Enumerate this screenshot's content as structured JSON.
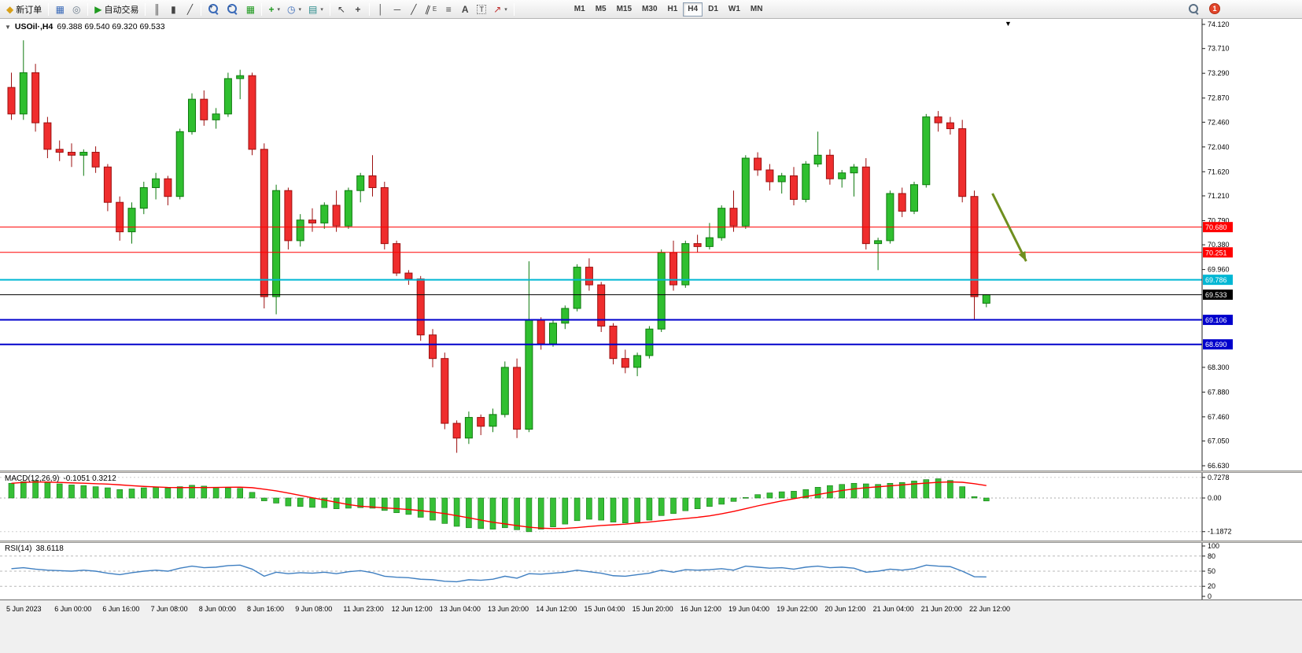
{
  "toolbar": {
    "new_order_label": "新订单",
    "autotrade_label": "自动交易",
    "timeframes": [
      "M1",
      "M5",
      "M15",
      "M30",
      "H1",
      "H4",
      "D1",
      "W1",
      "MN"
    ],
    "active_timeframe": "H4",
    "notification_count": "1"
  },
  "icons": {
    "new_order": "◆",
    "charts": "▦",
    "navigator": "◎",
    "autotrade_play": "▶",
    "bar_chart": "║",
    "candles": "▮",
    "line_chart": "╱",
    "plus": "+",
    "minus": "−",
    "grid": "▦",
    "indicators": "+",
    "periods": "◷",
    "templates": "▤",
    "cursor": "↖",
    "crosshair": "+",
    "vline": "│",
    "hline": "─",
    "trendline": "╱",
    "channel": "∥",
    "channel_letter": "E",
    "fibonacci": "≡",
    "text": "A",
    "label": "T",
    "arrows": "↗",
    "dropdown": "▾",
    "ohlc_dropdown": "▼",
    "shift_marker": "▼"
  },
  "chart": {
    "symbol_title": "USOil·,H4",
    "ohlc": "69.388 69.540 69.320 69.533",
    "price_axis": [
      "74.120",
      "73.710",
      "73.290",
      "72.870",
      "72.460",
      "72.040",
      "71.620",
      "71.210",
      "70.790",
      "70.380",
      "69.960",
      "68.300",
      "67.880",
      "67.460",
      "67.050",
      "66.630"
    ]
  },
  "macd": {
    "label": "MACD(12,26,9)",
    "values_text": "-0.1051 0.3212",
    "axis": [
      "0.7278",
      "0.00",
      "-1.1872"
    ]
  },
  "rsi": {
    "label": "RSI(14)",
    "value_text": "38.6118",
    "axis": [
      "100",
      "80",
      "50",
      "20",
      "0"
    ]
  },
  "time_axis": [
    "5 Jun 2023",
    "6 Jun 00:00",
    "6 Jun 16:00",
    "7 Jun 08:00",
    "8 Jun 00:00",
    "8 Jun 16:00",
    "9 Jun 08:00",
    "11 Jun 23:00",
    "12 Jun 12:00",
    "13 Jun 04:00",
    "13 Jun 20:00",
    "14 Jun 12:00",
    "15 Jun 04:00",
    "15 Jun 20:00",
    "16 Jun 12:00",
    "19 Jun 04:00",
    "19 Jun 22:00",
    "20 Jun 12:00",
    "21 Jun 04:00",
    "21 Jun 20:00",
    "22 Jun 12:00"
  ],
  "colors": {
    "bull": "#2fbf2f",
    "bull_edge": "#0f7a0f",
    "bear": "#ef2d2d",
    "bear_edge": "#9c0f0f",
    "macd_hist": "#36c036",
    "macd_hist_edge": "#177a17",
    "macd_signal": "#ff0000",
    "rsi": "#3f7fc1",
    "resistance": "#ff0000",
    "support": "#0000cc",
    "pivot": "#00b7d4",
    "current": "#000000",
    "arrow": "#6f8f1f"
  },
  "chart_data": {
    "type": "candlestick",
    "symbol": "USOil",
    "timeframe": "H4",
    "ylim": [
      66.63,
      74.12
    ],
    "current_close": 69.533,
    "candles": [
      [
        73.05,
        73.3,
        72.5,
        72.6
      ],
      [
        72.6,
        73.85,
        72.5,
        73.3
      ],
      [
        73.3,
        73.45,
        72.3,
        72.45
      ],
      [
        72.45,
        72.55,
        71.85,
        72.0
      ],
      [
        72.0,
        72.15,
        71.8,
        71.95
      ],
      [
        71.95,
        72.1,
        71.7,
        71.9
      ],
      [
        71.9,
        72.0,
        71.55,
        71.95
      ],
      [
        71.95,
        72.05,
        71.6,
        71.7
      ],
      [
        71.7,
        71.75,
        70.95,
        71.1
      ],
      [
        71.1,
        71.2,
        70.45,
        70.6
      ],
      [
        70.6,
        71.1,
        70.4,
        71.0
      ],
      [
        71.0,
        71.45,
        70.9,
        71.35
      ],
      [
        71.35,
        71.6,
        71.15,
        71.5
      ],
      [
        71.5,
        71.55,
        71.05,
        71.2
      ],
      [
        71.2,
        72.35,
        71.15,
        72.3
      ],
      [
        72.3,
        72.95,
        72.25,
        72.85
      ],
      [
        72.85,
        73.0,
        72.4,
        72.5
      ],
      [
        72.5,
        72.7,
        72.35,
        72.6
      ],
      [
        72.6,
        73.3,
        72.55,
        73.2
      ],
      [
        73.2,
        73.35,
        72.85,
        73.25
      ],
      [
        73.25,
        73.3,
        71.9,
        72.0
      ],
      [
        72.0,
        72.1,
        69.3,
        69.5
      ],
      [
        69.5,
        71.4,
        69.2,
        71.3
      ],
      [
        71.3,
        71.35,
        70.3,
        70.45
      ],
      [
        70.45,
        70.9,
        70.35,
        70.8
      ],
      [
        70.8,
        71.0,
        70.6,
        70.75
      ],
      [
        70.75,
        71.1,
        70.65,
        71.05
      ],
      [
        71.05,
        71.3,
        70.6,
        70.7
      ],
      [
        70.7,
        71.35,
        70.65,
        71.3
      ],
      [
        71.3,
        71.6,
        71.1,
        71.55
      ],
      [
        71.55,
        71.9,
        71.2,
        71.35
      ],
      [
        71.35,
        71.45,
        70.3,
        70.4
      ],
      [
        70.4,
        70.45,
        69.85,
        69.9
      ],
      [
        69.9,
        69.95,
        69.7,
        69.8
      ],
      [
        69.8,
        69.85,
        68.75,
        68.85
      ],
      [
        68.85,
        68.95,
        68.3,
        68.45
      ],
      [
        68.45,
        68.55,
        67.25,
        67.35
      ],
      [
        67.35,
        67.4,
        66.85,
        67.1
      ],
      [
        67.1,
        67.55,
        67.0,
        67.45
      ],
      [
        67.45,
        67.5,
        67.15,
        67.3
      ],
      [
        67.3,
        67.6,
        67.2,
        67.5
      ],
      [
        67.5,
        68.4,
        67.45,
        68.3
      ],
      [
        68.3,
        68.45,
        67.1,
        67.25
      ],
      [
        67.25,
        70.1,
        67.2,
        69.1
      ],
      [
        69.1,
        69.15,
        68.6,
        68.7
      ],
      [
        68.7,
        69.1,
        68.65,
        69.05
      ],
      [
        69.05,
        69.35,
        68.95,
        69.3
      ],
      [
        69.3,
        70.05,
        69.25,
        70.0
      ],
      [
        70.0,
        70.15,
        69.6,
        69.7
      ],
      [
        69.7,
        69.75,
        68.9,
        69.0
      ],
      [
        69.0,
        69.05,
        68.35,
        68.45
      ],
      [
        68.45,
        68.6,
        68.2,
        68.3
      ],
      [
        68.3,
        68.55,
        68.15,
        68.5
      ],
      [
        68.5,
        69.0,
        68.45,
        68.95
      ],
      [
        68.95,
        70.3,
        68.9,
        70.25
      ],
      [
        70.25,
        70.45,
        69.6,
        69.7
      ],
      [
        69.7,
        70.45,
        69.65,
        70.4
      ],
      [
        70.4,
        70.55,
        70.25,
        70.35
      ],
      [
        70.35,
        70.75,
        70.3,
        70.5
      ],
      [
        70.5,
        71.05,
        70.45,
        71.0
      ],
      [
        71.0,
        71.3,
        70.6,
        70.7
      ],
      [
        70.7,
        71.9,
        70.65,
        71.85
      ],
      [
        71.85,
        71.95,
        71.55,
        71.65
      ],
      [
        71.65,
        71.75,
        71.3,
        71.45
      ],
      [
        71.45,
        71.6,
        71.25,
        71.55
      ],
      [
        71.55,
        71.7,
        71.05,
        71.15
      ],
      [
        71.15,
        71.8,
        71.1,
        71.75
      ],
      [
        71.75,
        72.3,
        71.7,
        71.9
      ],
      [
        71.9,
        72.0,
        71.4,
        71.5
      ],
      [
        71.5,
        71.65,
        71.35,
        71.6
      ],
      [
        71.6,
        71.75,
        71.2,
        71.7
      ],
      [
        71.7,
        71.85,
        70.3,
        70.4
      ],
      [
        70.4,
        70.5,
        69.95,
        70.45
      ],
      [
        70.45,
        71.3,
        70.4,
        71.25
      ],
      [
        71.25,
        71.35,
        70.85,
        70.95
      ],
      [
        70.95,
        71.45,
        70.9,
        71.4
      ],
      [
        71.4,
        72.6,
        71.35,
        72.55
      ],
      [
        72.55,
        72.65,
        72.3,
        72.45
      ],
      [
        72.45,
        72.55,
        72.25,
        72.35
      ],
      [
        72.35,
        72.5,
        71.1,
        71.2
      ],
      [
        71.2,
        71.3,
        69.1,
        69.5
      ],
      [
        69.388,
        69.54,
        69.32,
        69.533
      ]
    ],
    "hlines": [
      {
        "name": "resistance-line-1",
        "label": "70.680",
        "price": 70.68,
        "color": "#ff0000",
        "width": 1
      },
      {
        "name": "resistance-line-2",
        "label": "70.251",
        "price": 70.251,
        "color": "#ff0000",
        "width": 1
      },
      {
        "name": "pivot-line",
        "label": "69.786",
        "price": 69.786,
        "color": "#00b7d4",
        "width": 2
      },
      {
        "name": "current-price-line",
        "label": "69.533",
        "price": 69.533,
        "color": "#000000",
        "width": 1
      },
      {
        "name": "support-line-1",
        "label": "69.106",
        "price": 69.106,
        "color": "#0000cc",
        "width": 2
      },
      {
        "name": "support-line-2",
        "label": "68.690",
        "price": 68.69,
        "color": "#0000cc",
        "width": 2
      }
    ],
    "arrow": {
      "from": {
        "bar": 81.8,
        "price": 71.25
      },
      "to": {
        "bar": 84.6,
        "price": 70.1
      },
      "color": "#6f8f1f"
    },
    "macd": {
      "params": "12,26,9",
      "main_value": -0.1051,
      "signal_value": 0.3212,
      "ylim": [
        -1.1872,
        0.7278
      ],
      "signal_period": 9,
      "histogram": [
        0.52,
        0.58,
        0.6,
        0.55,
        0.5,
        0.46,
        0.44,
        0.4,
        0.36,
        0.3,
        0.32,
        0.36,
        0.38,
        0.35,
        0.4,
        0.45,
        0.42,
        0.38,
        0.36,
        0.34,
        0.2,
        -0.1,
        -0.18,
        -0.28,
        -0.3,
        -0.33,
        -0.34,
        -0.38,
        -0.36,
        -0.34,
        -0.36,
        -0.44,
        -0.52,
        -0.58,
        -0.68,
        -0.78,
        -0.9,
        -1.0,
        -1.05,
        -1.08,
        -1.1,
        -1.05,
        -1.12,
        -1.19,
        -1.1,
        -1.02,
        -0.92,
        -0.8,
        -0.75,
        -0.78,
        -0.85,
        -0.88,
        -0.85,
        -0.78,
        -0.62,
        -0.55,
        -0.45,
        -0.38,
        -0.3,
        -0.22,
        -0.12,
        0.02,
        0.12,
        0.18,
        0.22,
        0.24,
        0.3,
        0.38,
        0.44,
        0.48,
        0.52,
        0.5,
        0.48,
        0.52,
        0.55,
        0.6,
        0.65,
        0.68,
        0.62,
        0.4,
        0.05,
        -0.1051
      ]
    },
    "rsi": {
      "period": 14,
      "current": 38.6118,
      "levels": [
        80,
        50,
        20
      ],
      "ylim": [
        0,
        100
      ],
      "values": [
        55,
        57,
        54,
        52,
        51,
        50,
        52,
        50,
        46,
        43,
        47,
        50,
        52,
        50,
        56,
        60,
        57,
        58,
        61,
        62,
        54,
        40,
        48,
        45,
        47,
        46,
        48,
        45,
        49,
        51,
        47,
        40,
        38,
        37,
        34,
        33,
        30,
        29,
        33,
        32,
        34,
        40,
        36,
        45,
        44,
        46,
        48,
        52,
        49,
        46,
        41,
        40,
        43,
        46,
        52,
        48,
        53,
        52,
        53,
        55,
        52,
        60,
        58,
        56,
        57,
        54,
        58,
        60,
        57,
        58,
        56,
        48,
        50,
        54,
        52,
        55,
        62,
        60,
        59,
        50,
        39,
        38.6
      ]
    }
  }
}
